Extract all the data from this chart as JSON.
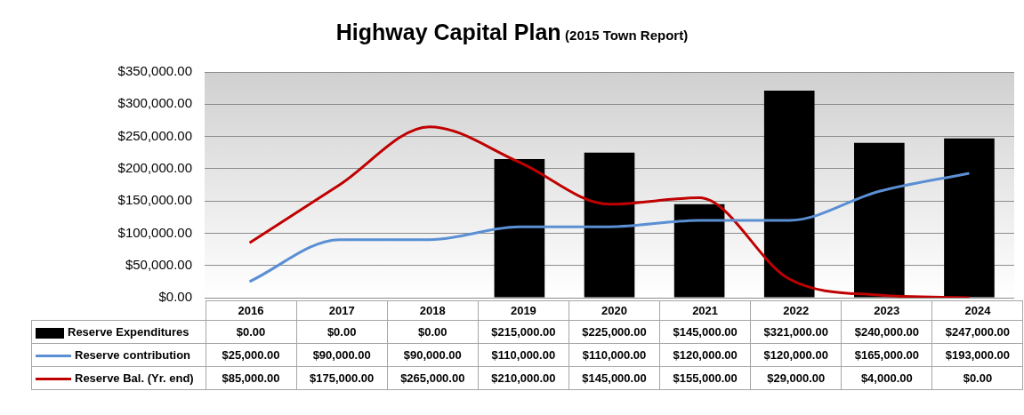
{
  "chart_data": {
    "type": "bar",
    "title": "Highway Capital Plan",
    "subtitle": "(2015 Town Report)",
    "categories": [
      "2016",
      "2017",
      "2018",
      "2019",
      "2020",
      "2021",
      "2022",
      "2023",
      "2024"
    ],
    "series": [
      {
        "name": "Reserve Expenditures",
        "color": "#000000",
        "values": [
          0,
          0,
          0,
          215000,
          225000,
          145000,
          321000,
          240000,
          247000
        ],
        "value_labels": [
          "$0.00",
          "$0.00",
          "$0.00",
          "$215,000.00",
          "$225,000.00",
          "$145,000.00",
          "$321,000.00",
          "$240,000.00",
          "$247,000.00"
        ]
      },
      {
        "name": "Reserve contribution",
        "type": "line",
        "color": "#5b8fd4",
        "values": [
          25000,
          90000,
          90000,
          110000,
          110000,
          120000,
          120000,
          165000,
          193000
        ],
        "value_labels": [
          "$25,000.00",
          "$90,000.00",
          "$90,000.00",
          "$110,000.00",
          "$110,000.00",
          "$120,000.00",
          "$120,000.00",
          "$165,000.00",
          "$193,000.00"
        ]
      },
      {
        "name": "Reserve Bal. (Yr. end)",
        "type": "line",
        "color": "#c00000",
        "values": [
          85000,
          175000,
          265000,
          210000,
          145000,
          155000,
          29000,
          4000,
          0
        ],
        "value_labels": [
          "$85,000.00",
          "$175,000.00",
          "$265,000.00",
          "$210,000.00",
          "$145,000.00",
          "$155,000.00",
          "$29,000.00",
          "$4,000.00",
          "$0.00"
        ]
      }
    ],
    "ylim": [
      0,
      350000
    ],
    "yticks": [
      {
        "value": 0,
        "label": "$0.00"
      },
      {
        "value": 50000,
        "label": "$50,000.00"
      },
      {
        "value": 100000,
        "label": "$100,000.00"
      },
      {
        "value": 150000,
        "label": "$150,000.00"
      },
      {
        "value": 200000,
        "label": "$200,000.00"
      },
      {
        "value": 250000,
        "label": "$250,000.00"
      },
      {
        "value": 300000,
        "label": "$300,000.00"
      },
      {
        "value": 350000,
        "label": "$350,000.00"
      }
    ],
    "grid": "y",
    "legend": "bottom"
  }
}
